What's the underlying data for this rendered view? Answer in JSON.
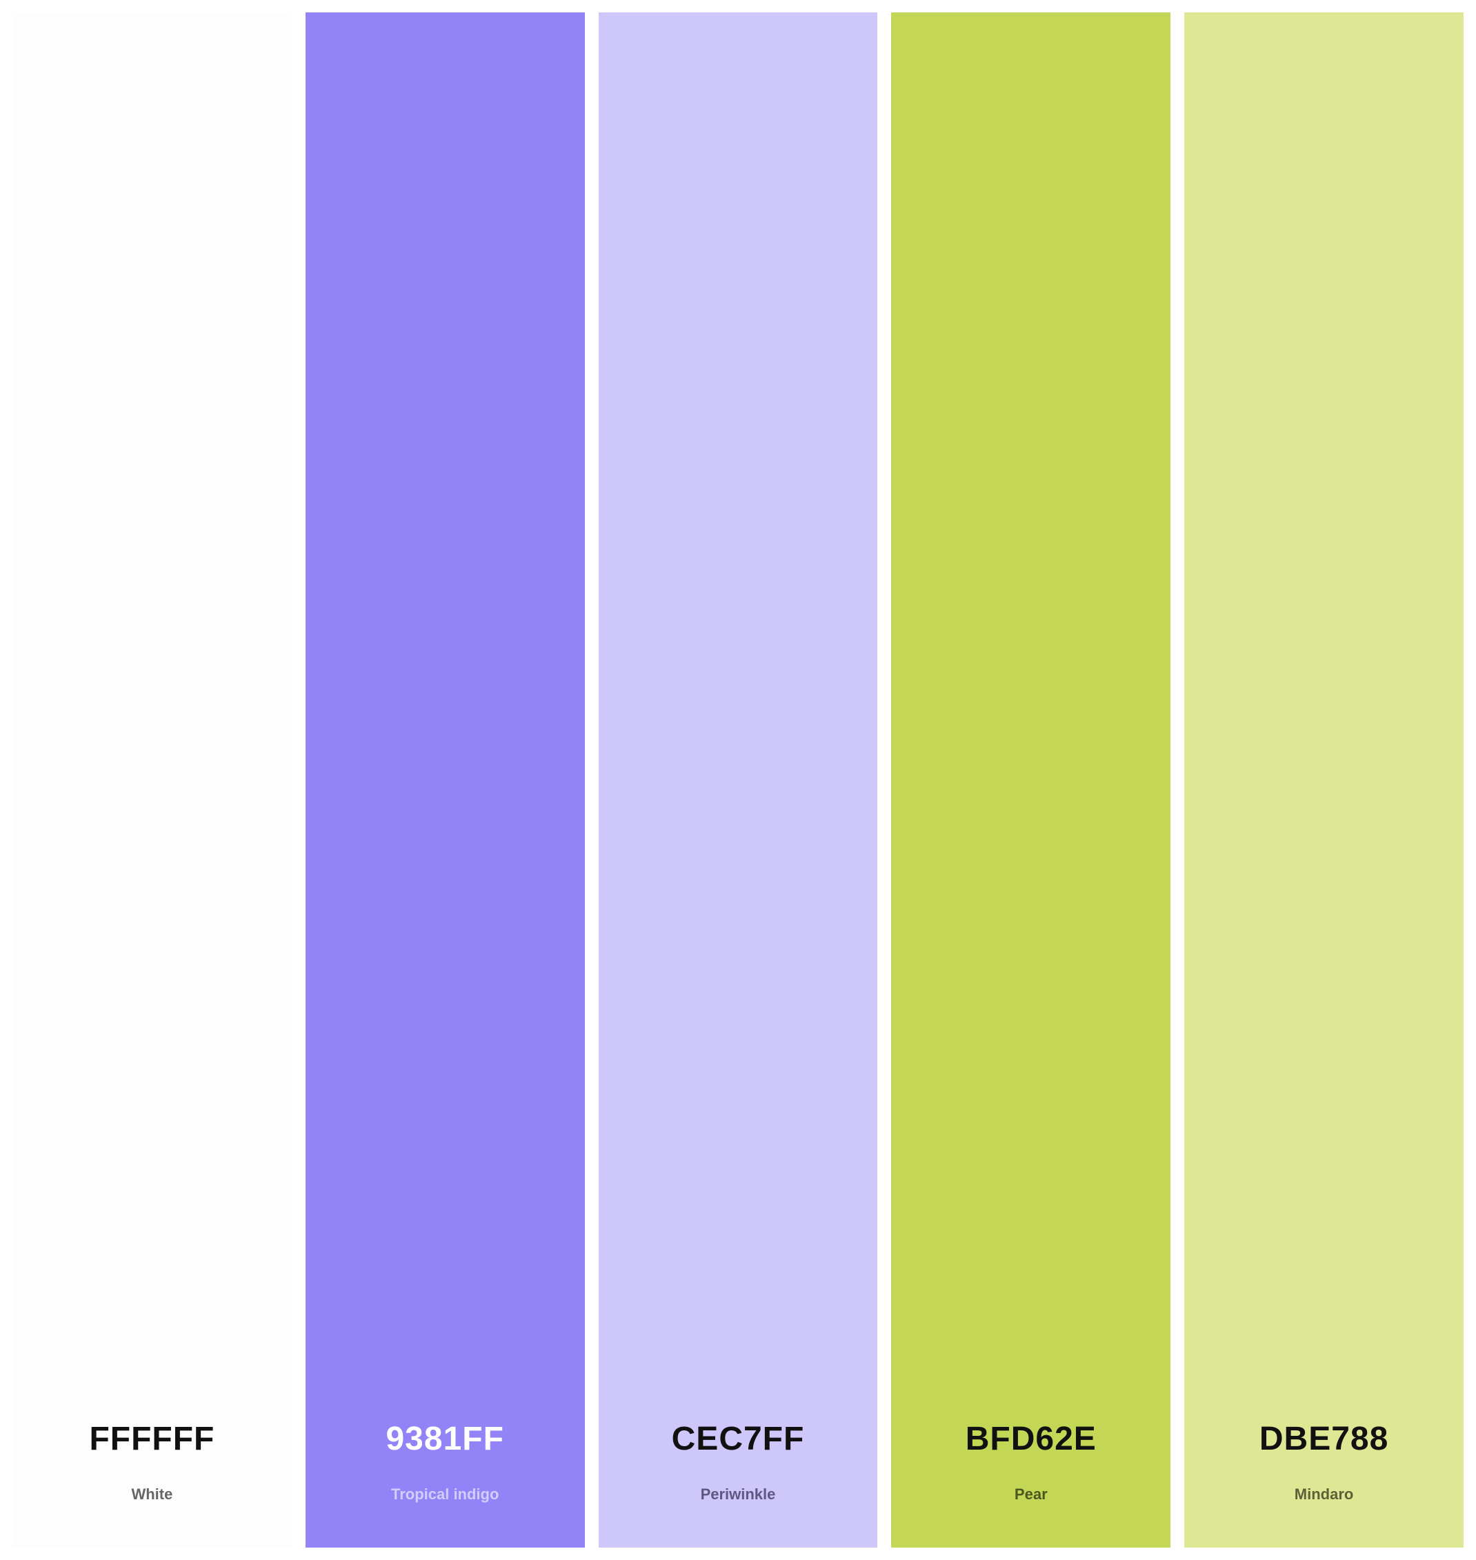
{
  "swatches": [
    {
      "hex": "FFFFFF",
      "name": "White",
      "color": "#FDFDFD",
      "text_color": "#111111",
      "label_color": "#666666"
    },
    {
      "hex": "9381FF",
      "name": "Tropical indigo",
      "color": "#9283F7",
      "text_color": "#FFFFFF",
      "label_color": "#D4CCFF"
    },
    {
      "hex": "CEC7FF",
      "name": "Periwinkle",
      "color": "#CEC7FA",
      "text_color": "#111111",
      "label_color": "#5E5880"
    },
    {
      "hex": "BFD62E",
      "name": "Pear",
      "color": "#C4D655",
      "text_color": "#111111",
      "label_color": "#4E5620"
    },
    {
      "hex": "DBE788",
      "name": "Mindaro",
      "color": "#DEE794",
      "text_color": "#111111",
      "label_color": "#5C6038"
    }
  ]
}
